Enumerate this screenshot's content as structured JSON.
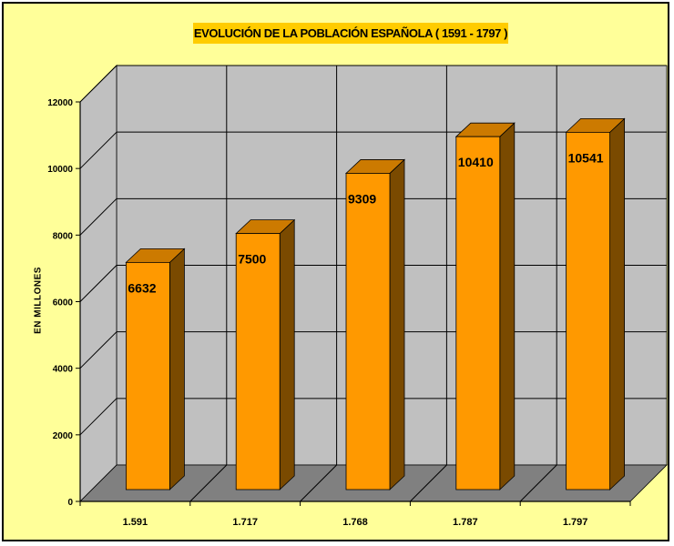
{
  "chart_data": {
    "type": "bar",
    "title": "EVOLUCIÓN DE LA POBLACIÓN ESPAÑOLA ( 1591 - 1797 )",
    "xlabel": "",
    "ylabel": "EN MILLONES",
    "categories": [
      "1.591",
      "1.717",
      "1.768",
      "1.787",
      "1.797"
    ],
    "values": [
      6632,
      7500,
      9309,
      10410,
      10541
    ],
    "data_labels": [
      "6632",
      "7500",
      "9309",
      "10410",
      "10541"
    ],
    "ylim": [
      0,
      12000
    ],
    "yticks": [
      0,
      2000,
      4000,
      6000,
      8000,
      10000,
      12000
    ],
    "ytick_labels": [
      "0",
      "2000",
      "4000",
      "6000",
      "8000",
      "10000",
      "12000"
    ],
    "grid": true,
    "legend": "none",
    "colors": {
      "background": "#ffff99",
      "plot_area": "#c0c0c0",
      "floor": "#808080",
      "title_box": "#ffcc00",
      "bar_front": "#ff9900",
      "bar_top": "#cc7a00",
      "bar_side": "#7a4a00"
    }
  }
}
